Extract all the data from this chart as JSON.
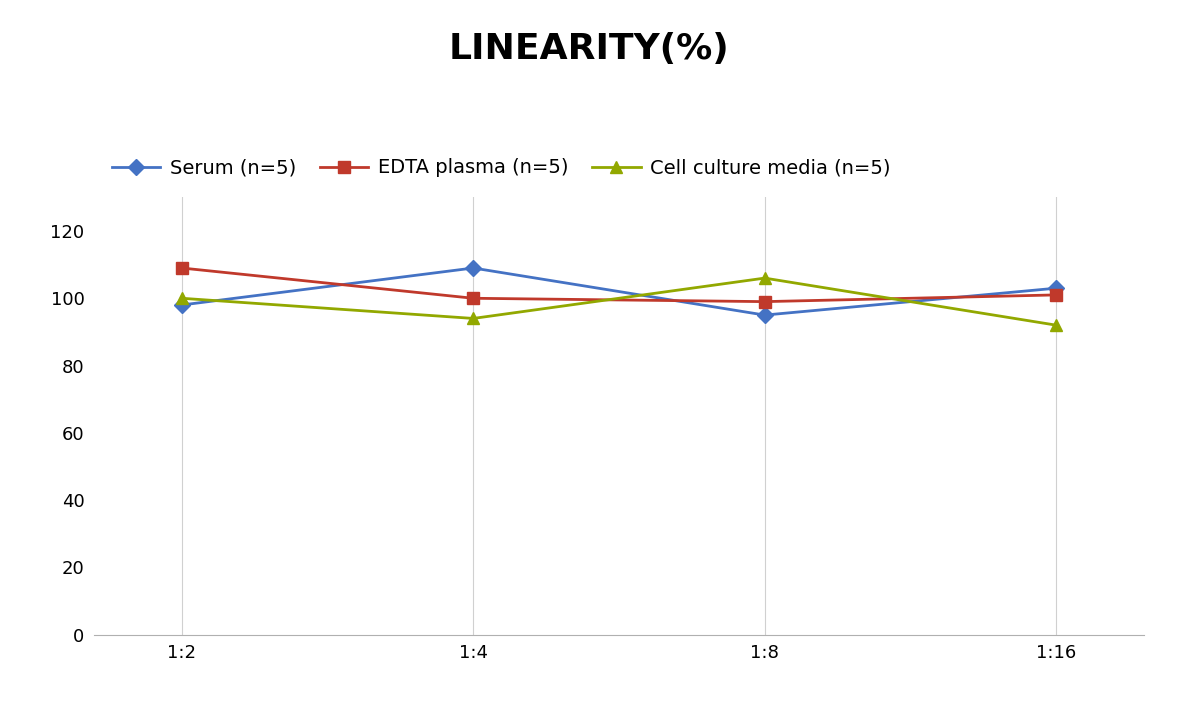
{
  "title": "LINEARITY(%)",
  "title_fontsize": 26,
  "title_fontweight": "bold",
  "x_labels": [
    "1:2",
    "1:4",
    "1:8",
    "1:16"
  ],
  "series": [
    {
      "label": "Serum (n=5)",
      "values": [
        98,
        109,
        95,
        103
      ],
      "color": "#4472C4",
      "marker": "D",
      "markersize": 8,
      "linewidth": 2
    },
    {
      "label": "EDTA plasma (n=5)",
      "values": [
        109,
        100,
        99,
        101
      ],
      "color": "#C0392B",
      "marker": "s",
      "markersize": 8,
      "linewidth": 2
    },
    {
      "label": "Cell culture media (n=5)",
      "values": [
        100,
        94,
        106,
        92
      ],
      "color": "#92A800",
      "marker": "^",
      "markersize": 8,
      "linewidth": 2
    }
  ],
  "ylim": [
    0,
    130
  ],
  "yticks": [
    0,
    20,
    40,
    60,
    80,
    100,
    120
  ],
  "background_color": "#ffffff",
  "grid_color": "#d0d0d0",
  "legend_fontsize": 14,
  "axis_fontsize": 13
}
